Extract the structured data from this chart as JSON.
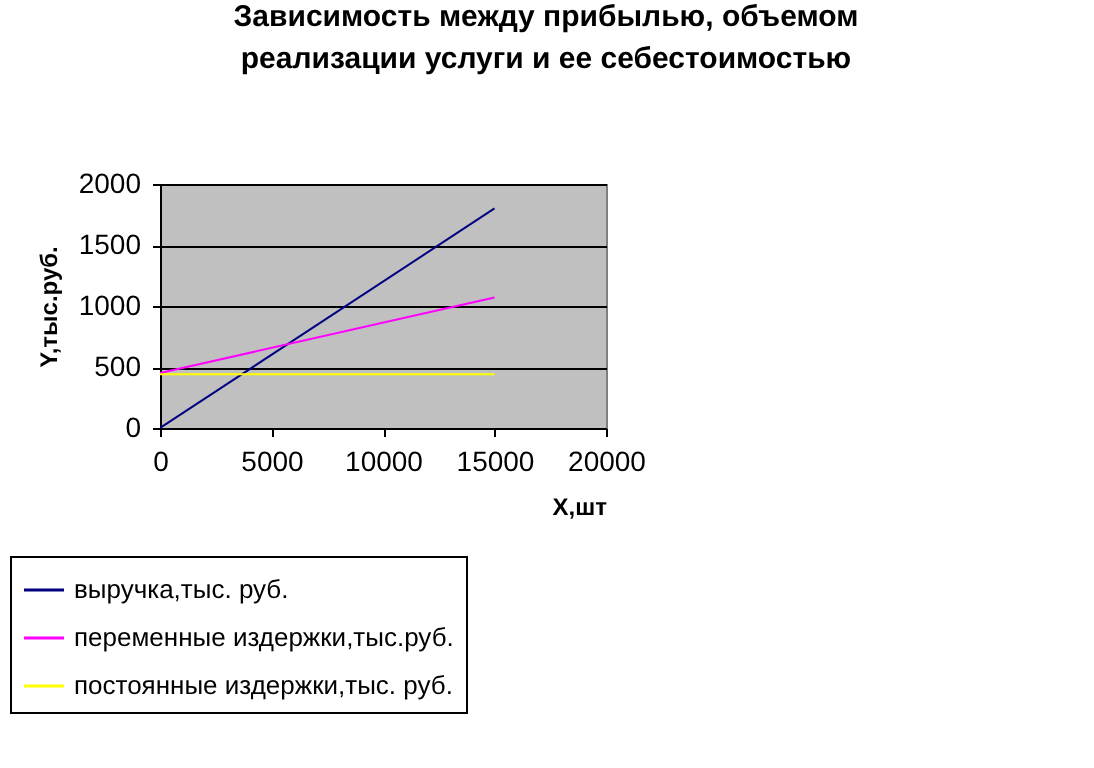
{
  "chart_data": {
    "type": "line",
    "title": "Зависимость между прибылью, объемом\nреализации услуги и ее себестоимостью",
    "xlabel": "Х,шт",
    "ylabel": "Y,тыс.руб.",
    "x": [
      0,
      15000
    ],
    "xlim": [
      0,
      20000
    ],
    "xticks": [
      0,
      5000,
      10000,
      15000,
      20000
    ],
    "ylim": [
      0,
      2000
    ],
    "yticks": [
      0,
      500,
      1000,
      1500,
      2000
    ],
    "grid": "y",
    "legend": "bottom left",
    "series": [
      {
        "name": "выручка,тыс. руб.",
        "color": "#000080",
        "values": [
          0,
          1800
        ]
      },
      {
        "name": "переменные издержки,тыс.руб.",
        "color": "#ff00ff",
        "values": [
          450,
          1070
        ]
      },
      {
        "name": "постоянные издержки,тыс. руб.",
        "color": "#ffff00",
        "values": [
          440,
          440
        ]
      }
    ]
  }
}
